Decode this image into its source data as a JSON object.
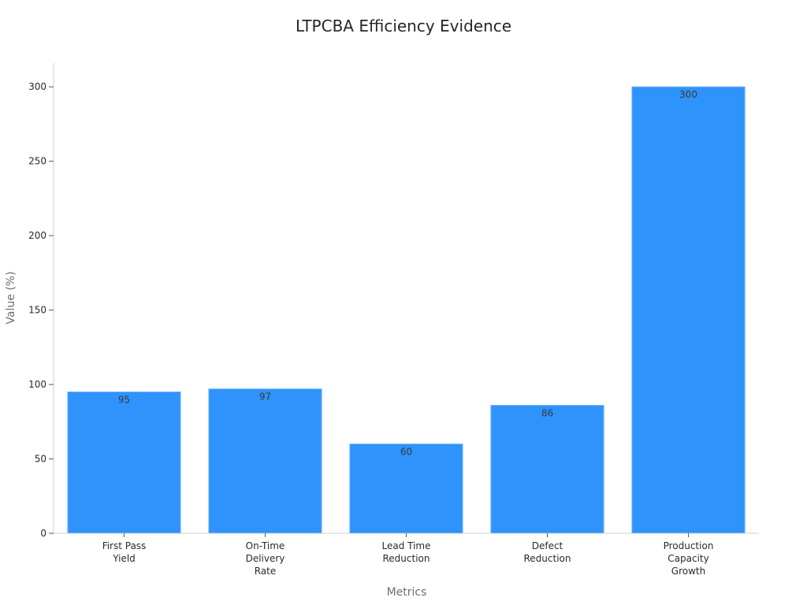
{
  "chart_data": {
    "type": "bar",
    "title": "LTPCBA Efficiency Evidence",
    "xlabel": "Metrics",
    "ylabel": "Value (%)",
    "categories": [
      [
        "First Pass",
        "Yield"
      ],
      [
        "On-Time",
        "Delivery",
        "Rate"
      ],
      [
        "Lead Time",
        "Reduction"
      ],
      [
        "Defect",
        "Reduction"
      ],
      [
        "Production",
        "Capacity",
        "Growth"
      ]
    ],
    "values": [
      95,
      97,
      60,
      86,
      300
    ],
    "data_labels": [
      "95",
      "97",
      "60",
      "86",
      "300"
    ],
    "ylim": [
      0,
      316
    ],
    "yticks": [
      0,
      50,
      100,
      150,
      200,
      250,
      300
    ],
    "grid": false,
    "legend": "none",
    "bar_color": "#2e93fa",
    "bar_edge_color": "#6cb4ff"
  }
}
